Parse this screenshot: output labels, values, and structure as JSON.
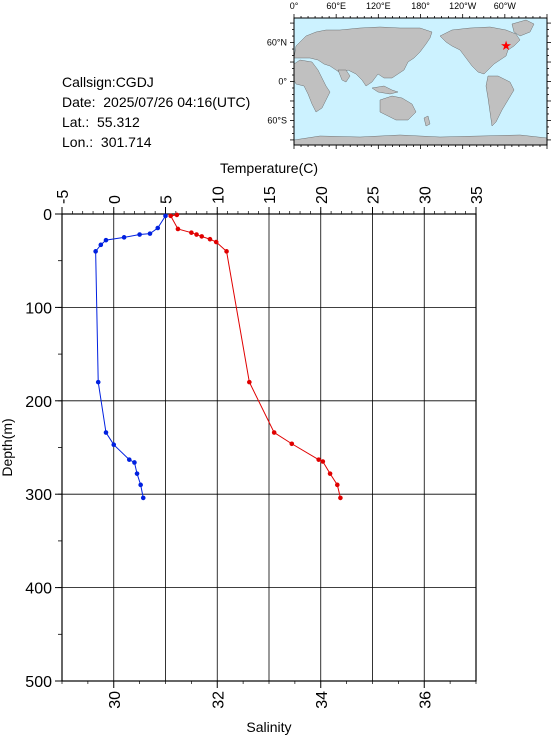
{
  "info": {
    "callsign": "Callsign:CGDJ",
    "date": "Date:  2025/07/26 04:16(UTC)",
    "lat": "Lat.:  55.312",
    "lon": "Lon.:  301.714"
  },
  "map": {
    "lon_labels": [
      "0°",
      "60°E",
      "120°E",
      "180°",
      "120°W",
      "60°W"
    ],
    "lat_labels": [
      "60°N",
      "0°",
      "60°S"
    ],
    "ocean_color": "#ccf2ff",
    "land_color": "#c0c0c0",
    "marker": {
      "lon": 301.714,
      "lat": 55.312,
      "icon": "star-icon",
      "color": "#ff0000"
    }
  },
  "chart_data": {
    "type": "line",
    "top_axis_label": "Temperature(C)",
    "bottom_axis_label": "Salinity",
    "ylabel": "Depth(m)",
    "temperature_range": [
      -5,
      35
    ],
    "temperature_ticks": [
      "-5",
      "0",
      "5",
      "10",
      "15",
      "20",
      "25",
      "30",
      "35"
    ],
    "salinity_range": [
      29,
      37
    ],
    "salinity_ticks": [
      "30",
      "32",
      "34",
      "36"
    ],
    "depth_range": [
      0,
      500
    ],
    "depth_ticks": [
      "0",
      "100",
      "200",
      "300",
      "400",
      "500"
    ],
    "grid": true,
    "series": [
      {
        "quantity": "temperature",
        "color": "#e00000",
        "points": [
          {
            "depth": 1,
            "value": 6.1
          },
          {
            "depth": 2,
            "value": 5.5
          },
          {
            "depth": 16,
            "value": 6.2
          },
          {
            "depth": 20,
            "value": 7.5
          },
          {
            "depth": 22,
            "value": 8.0
          },
          {
            "depth": 24,
            "value": 8.5
          },
          {
            "depth": 27,
            "value": 9.3
          },
          {
            "depth": 30,
            "value": 9.9
          },
          {
            "depth": 40,
            "value": 10.9
          },
          {
            "depth": 180,
            "value": 13.1
          },
          {
            "depth": 234,
            "value": 15.5
          },
          {
            "depth": 246,
            "value": 17.2
          },
          {
            "depth": 263,
            "value": 19.8
          },
          {
            "depth": 265,
            "value": 20.2
          },
          {
            "depth": 278,
            "value": 20.9
          },
          {
            "depth": 290,
            "value": 21.6
          },
          {
            "depth": 304,
            "value": 21.9
          }
        ]
      },
      {
        "quantity": "salinity",
        "color": "#0020e0",
        "points": [
          {
            "depth": 2,
            "value": 31.0
          },
          {
            "depth": 15,
            "value": 30.85
          },
          {
            "depth": 21,
            "value": 30.7
          },
          {
            "depth": 22,
            "value": 30.5
          },
          {
            "depth": 25,
            "value": 30.2
          },
          {
            "depth": 28,
            "value": 29.85
          },
          {
            "depth": 33,
            "value": 29.75
          },
          {
            "depth": 40,
            "value": 29.65
          },
          {
            "depth": 180,
            "value": 29.7
          },
          {
            "depth": 234,
            "value": 29.85
          },
          {
            "depth": 247,
            "value": 30.0
          },
          {
            "depth": 263,
            "value": 30.3
          },
          {
            "depth": 266,
            "value": 30.4
          },
          {
            "depth": 278,
            "value": 30.45
          },
          {
            "depth": 290,
            "value": 30.52
          },
          {
            "depth": 304,
            "value": 30.57
          }
        ]
      }
    ]
  }
}
